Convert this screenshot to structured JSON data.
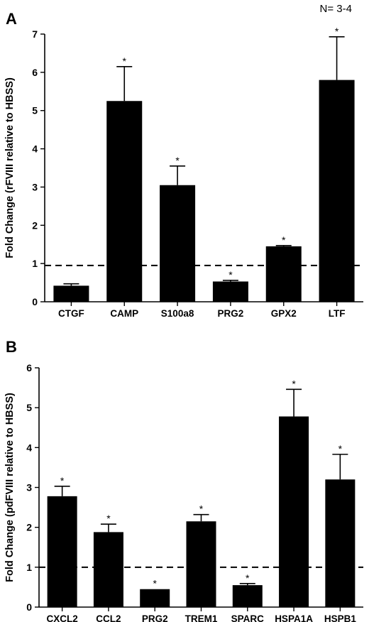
{
  "figure": {
    "note": "N= 3-4"
  },
  "chart_data": [
    {
      "type": "bar",
      "panel_label": "A",
      "title": "",
      "xlabel": "",
      "ylabel": "Fold Change (rFVIII relative to HBSS)",
      "categories": [
        "CTGF",
        "CAMP",
        "S100a8",
        "PRG2",
        "GPX2",
        "LTF"
      ],
      "values": [
        0.42,
        5.25,
        3.05,
        0.53,
        1.45,
        5.8
      ],
      "errors": [
        0.05,
        0.9,
        0.5,
        0.03,
        0.02,
        1.13
      ],
      "significance": [
        "",
        "*",
        "*",
        "*",
        "*",
        "*"
      ],
      "ylim": [
        0,
        7
      ],
      "yticks": [
        0,
        1,
        2,
        3,
        4,
        5,
        6,
        7
      ],
      "reference_line": 0.95,
      "bar_color": "#000000",
      "grid": false
    },
    {
      "type": "bar",
      "panel_label": "B",
      "title": "",
      "xlabel": "",
      "ylabel": "Fold Change (pdFVIII relative to HBSS)",
      "categories": [
        "CXCL2",
        "CCL2",
        "PRG2",
        "TREM1",
        "SPARC",
        "HSPA1A",
        "HSPB1"
      ],
      "values": [
        2.78,
        1.88,
        0.45,
        2.15,
        0.55,
        4.78,
        3.2
      ],
      "errors": [
        0.25,
        0.2,
        0.0,
        0.17,
        0.04,
        0.68,
        0.63
      ],
      "significance": [
        "*",
        "*",
        "*",
        "*",
        "*",
        "*",
        "*"
      ],
      "ylim": [
        0,
        6
      ],
      "yticks": [
        0,
        1,
        2,
        3,
        4,
        5,
        6
      ],
      "reference_line": 1.0,
      "bar_color": "#000000",
      "grid": false
    }
  ]
}
